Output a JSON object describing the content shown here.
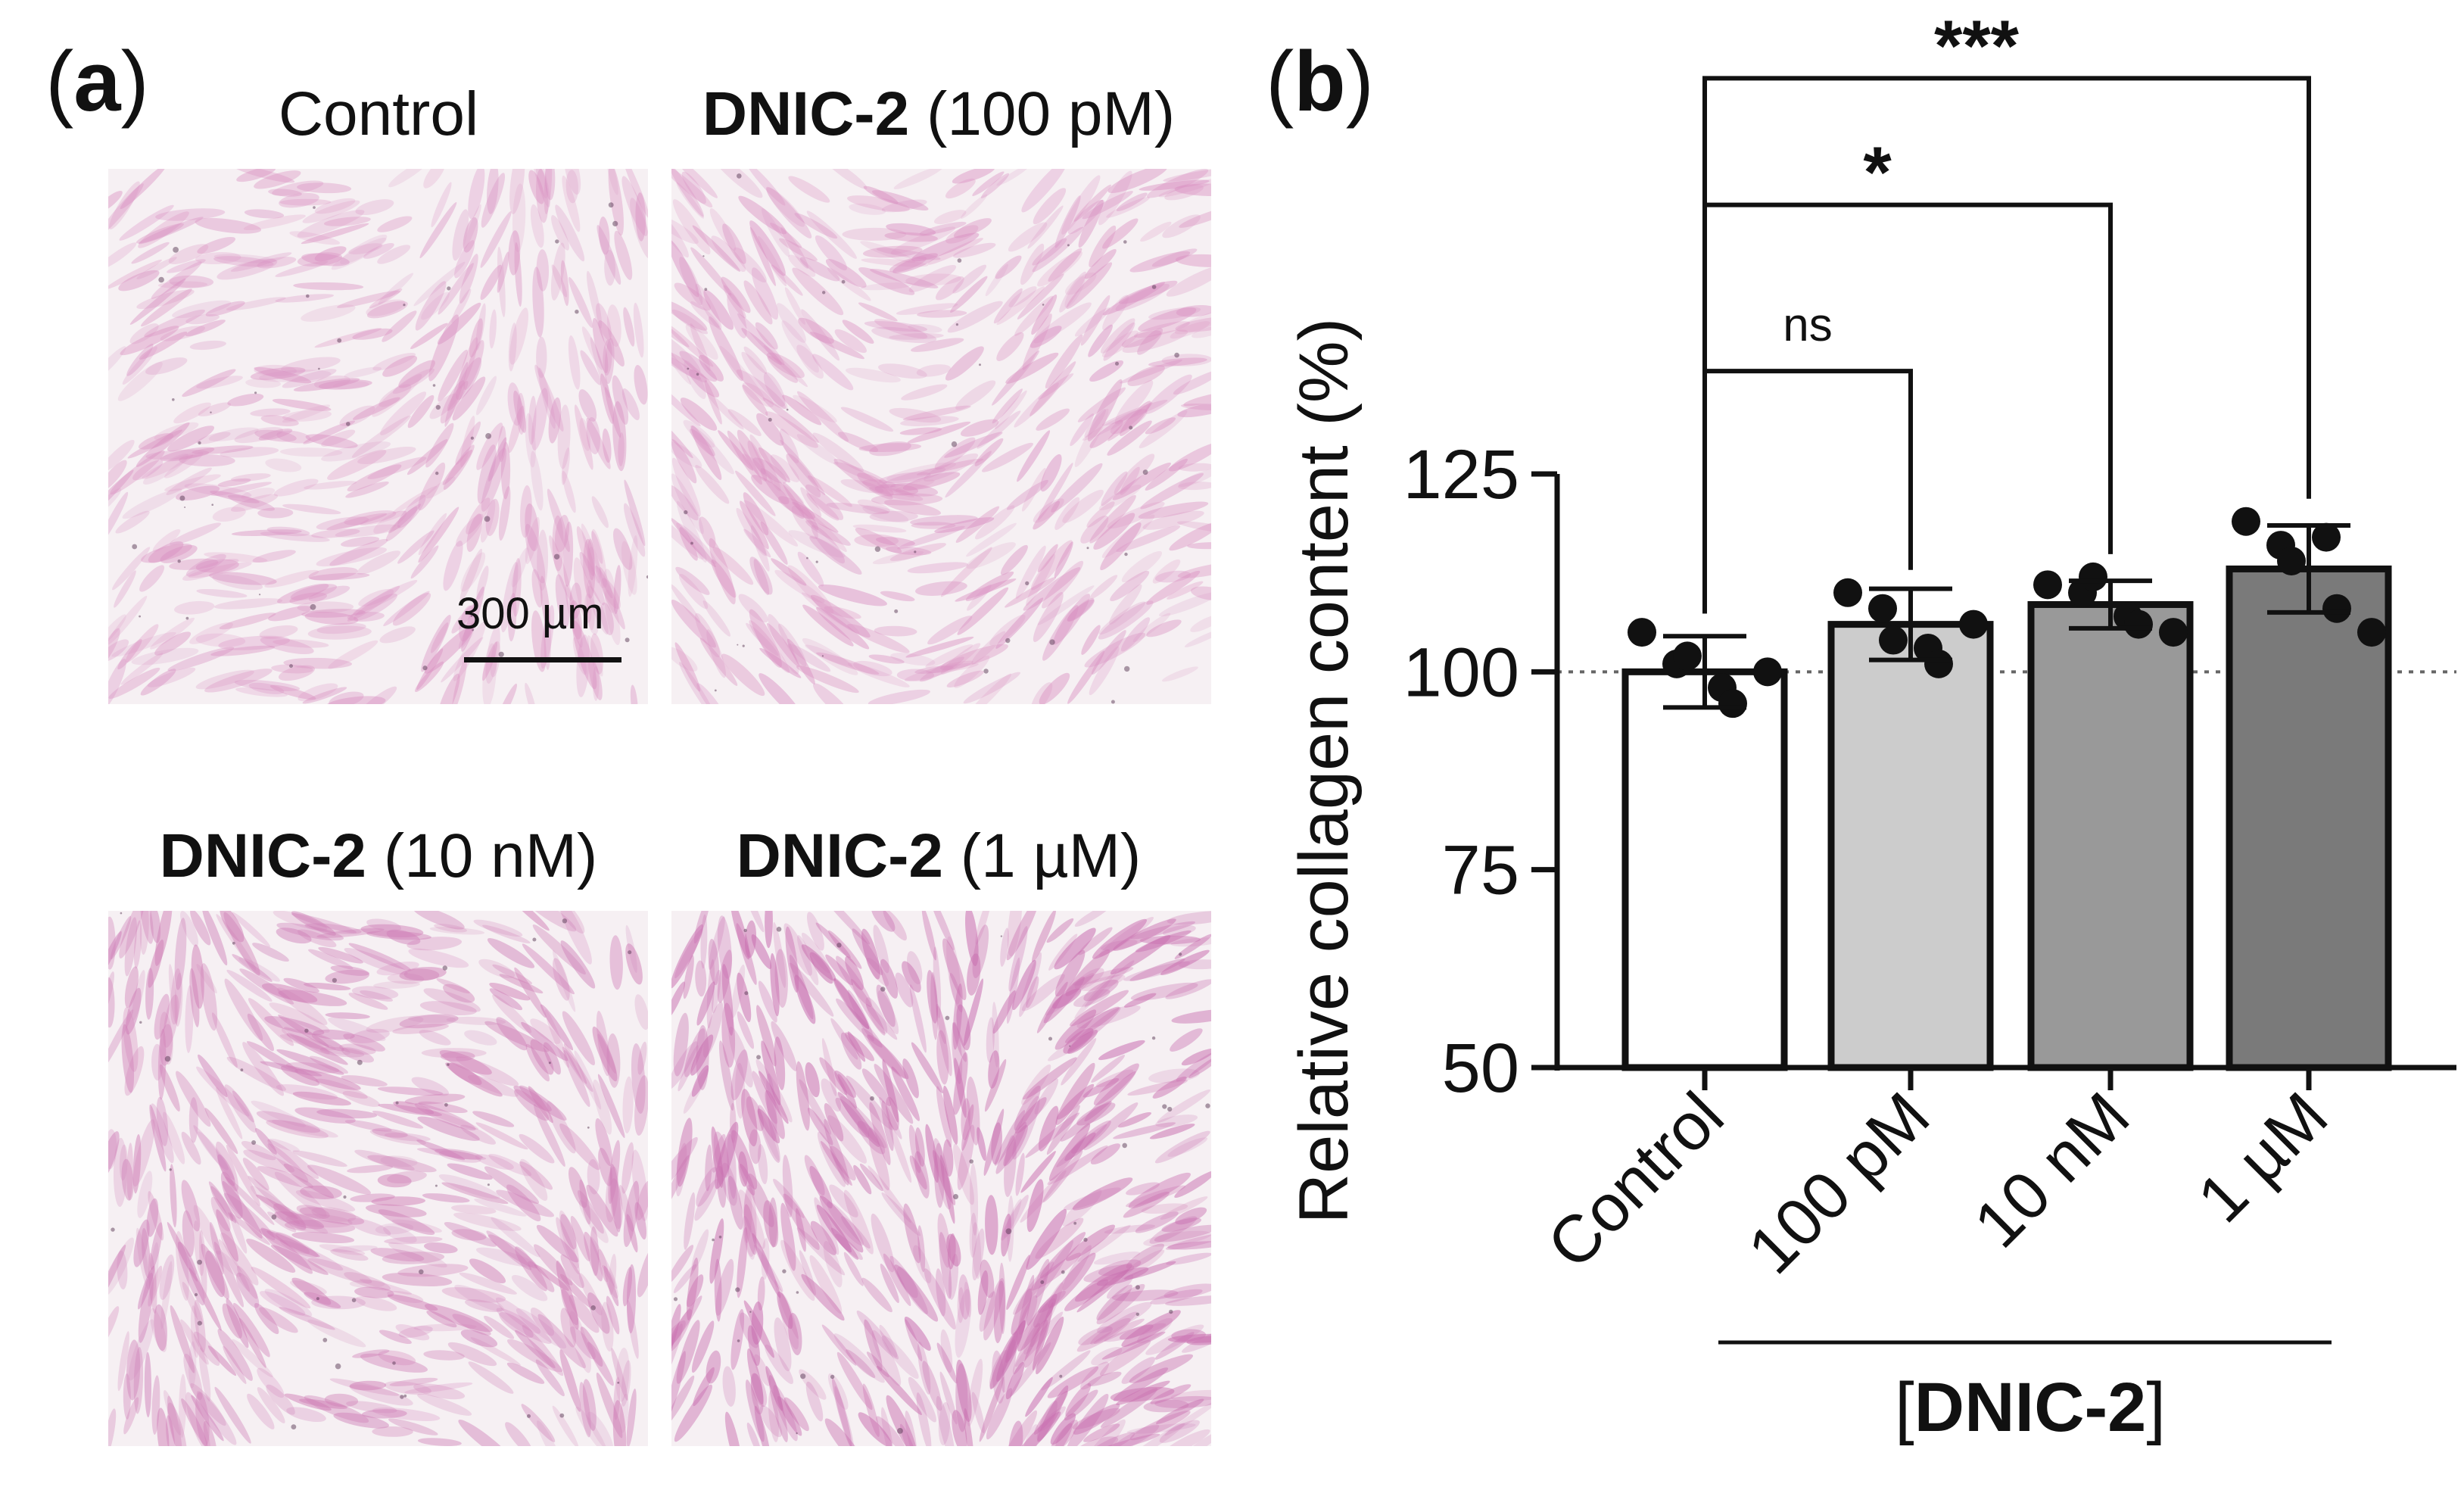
{
  "panel_a": {
    "letter": "a",
    "scale_bar_label": "300 µm",
    "images": [
      {
        "compound": "",
        "condition": "Control",
        "tint": "#d98fc1",
        "density": 0.35
      },
      {
        "compound": "DNIC-2",
        "condition": "(100 pM)",
        "tint": "#d98fc1",
        "density": 0.45
      },
      {
        "compound": "DNIC-2",
        "condition": "(10 nM)",
        "tint": "#cf7fb7",
        "density": 0.6
      },
      {
        "compound": "DNIC-2",
        "condition": "(1 µM)",
        "tint": "#c970b0",
        "density": 0.75
      }
    ]
  },
  "panel_b": {
    "letter": "b"
  },
  "chart_data": {
    "type": "bar",
    "categories": [
      "Control",
      "100 pM",
      "10 nM",
      "1 µM"
    ],
    "values": [
      100,
      106,
      108.5,
      113
    ],
    "errors": [
      4.5,
      4.5,
      3,
      5.5
    ],
    "points": [
      [
        105,
        101,
        102,
        98,
        96,
        100
      ],
      [
        110,
        108,
        104,
        103,
        101,
        106
      ],
      [
        111,
        110,
        112,
        107,
        106,
        105
      ],
      [
        119,
        116,
        114,
        117,
        108,
        105
      ]
    ],
    "bar_colors": [
      "#ffffff",
      "#cccccc",
      "#999999",
      "#7a7a7a"
    ],
    "ylabel": "Relative collagen content (%)",
    "xgroup_label": "[DNIC-2]",
    "xgroup_label_bold": "DNIC-2",
    "ylim": [
      50,
      125
    ],
    "yticks": [
      50,
      75,
      100,
      125
    ],
    "reference_line": 100,
    "significance": [
      {
        "from": 0,
        "to": 1,
        "label": "ns",
        "level": 138
      },
      {
        "from": 0,
        "to": 2,
        "label": "*",
        "level": 159
      },
      {
        "from": 0,
        "to": 3,
        "label": "***",
        "level": 175
      }
    ]
  }
}
